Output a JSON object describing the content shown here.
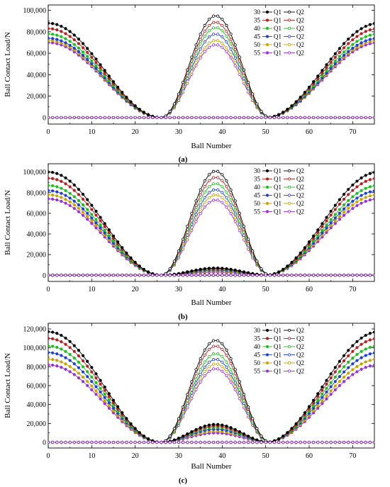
{
  "figure_captions": [
    "(a)",
    "(b)",
    "(c)"
  ],
  "chart_data": [
    {
      "type": "line",
      "caption": "(a)",
      "xlabel": "Ball Number",
      "ylabel": "Ball Contact Load/N",
      "xlim": [
        0,
        75
      ],
      "ylim": [
        -6000,
        105000
      ],
      "xticks": [
        0,
        10,
        20,
        30,
        40,
        50,
        60,
        70
      ],
      "xtick_labels": [
        "0",
        "10",
        "20",
        "30",
        "40",
        "50",
        "60",
        "70"
      ],
      "yticks": [
        0,
        20000,
        40000,
        60000,
        80000,
        100000
      ],
      "ytick_labels": [
        "0",
        "20,000",
        "40,000",
        "60,000",
        "80,000",
        "100,000"
      ],
      "grid": false,
      "legend_position": "top-right",
      "legend_q1_label": "Q1",
      "legend_q2_label": "Q2",
      "zero_edges": [
        26,
        51
      ],
      "q1_center": 0,
      "q2_center": 38.5,
      "series": [
        {
          "name": "30",
          "color": "#000000",
          "q1_peak": 88000,
          "q2_peak": 95000,
          "q2_inner": 0
        },
        {
          "name": "35",
          "color": "#b22222",
          "q1_peak": 83000,
          "q2_peak": 89000,
          "q2_inner": 0
        },
        {
          "name": "40",
          "color": "#22bb22",
          "q1_peak": 78000,
          "q2_peak": 84000,
          "q2_inner": 0
        },
        {
          "name": "45",
          "color": "#1f3fd0",
          "q1_peak": 74000,
          "q2_peak": 78000,
          "q2_inner": 0
        },
        {
          "name": "50",
          "color": "#c8a400",
          "q1_peak": 72000,
          "q2_peak": 72000,
          "q2_inner": 0
        },
        {
          "name": "55",
          "color": "#9b30d8",
          "q1_peak": 70000,
          "q2_peak": 68000,
          "q2_inner": 0
        }
      ]
    },
    {
      "type": "line",
      "caption": "(b)",
      "xlabel": "Ball Number",
      "ylabel": "Ball Contact Load/N",
      "xlim": [
        0,
        75
      ],
      "ylim": [
        -6000,
        108000
      ],
      "xticks": [
        0,
        10,
        20,
        30,
        40,
        50,
        60,
        70
      ],
      "xtick_labels": [
        "0",
        "10",
        "20",
        "30",
        "40",
        "50",
        "60",
        "70"
      ],
      "yticks": [
        0,
        20000,
        40000,
        60000,
        80000,
        100000
      ],
      "ytick_labels": [
        "0",
        "20,000",
        "40,000",
        "60,000",
        "80,000",
        "100,000"
      ],
      "grid": false,
      "legend_position": "top-right",
      "legend_q1_label": "Q1",
      "legend_q2_label": "Q2",
      "zero_edges": [
        26,
        51
      ],
      "q1_center": 0,
      "q2_center": 38.5,
      "series": [
        {
          "name": "30",
          "color": "#000000",
          "q1_peak": 100000,
          "q2_peak": 101000,
          "q2_inner": 7000
        },
        {
          "name": "35",
          "color": "#b22222",
          "q1_peak": 94000,
          "q2_peak": 95000,
          "q2_inner": 6500
        },
        {
          "name": "40",
          "color": "#22bb22",
          "q1_peak": 87000,
          "q2_peak": 89000,
          "q2_inner": 6000
        },
        {
          "name": "45",
          "color": "#1f3fd0",
          "q1_peak": 82000,
          "q2_peak": 83000,
          "q2_inner": 5000
        },
        {
          "name": "50",
          "color": "#c8a400",
          "q1_peak": 78000,
          "q2_peak": 78000,
          "q2_inner": 4000
        },
        {
          "name": "55",
          "color": "#9b30d8",
          "q1_peak": 74000,
          "q2_peak": 73000,
          "q2_inner": 3000
        }
      ]
    },
    {
      "type": "line",
      "caption": "(c)",
      "xlabel": "Ball Number",
      "ylabel": "Ball Contact Load/N",
      "xlim": [
        0,
        75
      ],
      "ylim": [
        -6000,
        126000
      ],
      "xticks": [
        0,
        10,
        20,
        30,
        40,
        50,
        60,
        70
      ],
      "xtick_labels": [
        "0",
        "10",
        "20",
        "30",
        "40",
        "50",
        "60",
        "70"
      ],
      "yticks": [
        0,
        20000,
        40000,
        60000,
        80000,
        100000,
        120000
      ],
      "ytick_labels": [
        "0",
        "20,000",
        "40,000",
        "60,000",
        "80,000",
        "100,000",
        "120,000"
      ],
      "grid": false,
      "legend_position": "top-right",
      "legend_q1_label": "Q1",
      "legend_q2_label": "Q2",
      "zero_edges": [
        26,
        51
      ],
      "q1_center": 0,
      "q2_center": 38.5,
      "series": [
        {
          "name": "30",
          "color": "#000000",
          "q1_peak": 117000,
          "q2_peak": 108000,
          "q2_inner": 19000
        },
        {
          "name": "35",
          "color": "#b22222",
          "q1_peak": 110000,
          "q2_peak": 102000,
          "q2_inner": 17500
        },
        {
          "name": "40",
          "color": "#22bb22",
          "q1_peak": 102000,
          "q2_peak": 94000,
          "q2_inner": 16000
        },
        {
          "name": "45",
          "color": "#1f3fd0",
          "q1_peak": 95000,
          "q2_peak": 88000,
          "q2_inner": 14000
        },
        {
          "name": "50",
          "color": "#c8a400",
          "q1_peak": 88000,
          "q2_peak": 83000,
          "q2_inner": 12000
        },
        {
          "name": "55",
          "color": "#9b30d8",
          "q1_peak": 82000,
          "q2_peak": 78000,
          "q2_inner": 10000
        }
      ]
    }
  ]
}
